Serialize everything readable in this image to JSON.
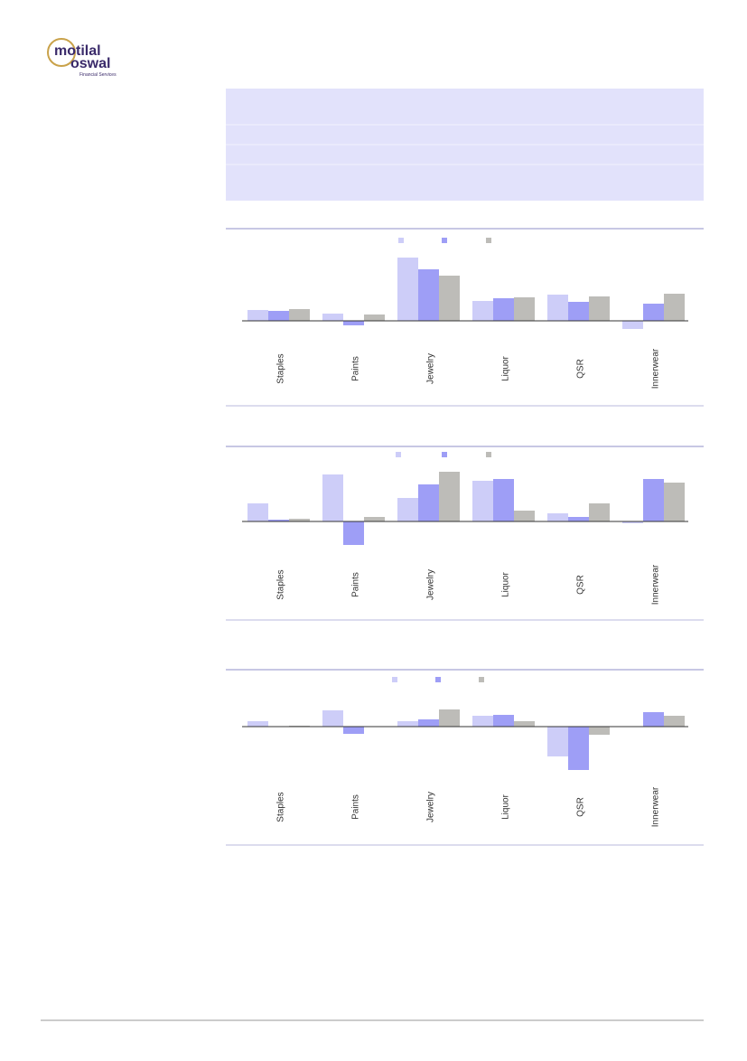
{
  "header": {
    "logo_line1": "motilal",
    "logo_line2": "oswal",
    "logo_sub": "Financial Services"
  },
  "chart_data": [
    {
      "type": "bar",
      "categories": [
        "Staples",
        "Paints",
        "Jewelry",
        "Liquor",
        "QSR",
        "Innerwear"
      ],
      "series": [
        {
          "color": "#cdcdf8",
          "values": [
            12,
            8,
            70,
            22,
            29,
            -9
          ]
        },
        {
          "color": "#9e9ef6",
          "values": [
            11,
            -5,
            57,
            25,
            21,
            19
          ]
        },
        {
          "color": "#bdbcb8",
          "values": [
            13,
            7,
            50,
            26,
            27,
            30
          ]
        }
      ]
    },
    {
      "type": "bar",
      "categories": [
        "Staples",
        "Paints",
        "Jewelry",
        "Liquor",
        "QSR",
        "Innerwear"
      ],
      "series": [
        {
          "color": "#cdcdf8",
          "values": [
            20,
            52,
            26,
            45,
            9,
            -2
          ]
        },
        {
          "color": "#9e9ef6",
          "values": [
            2,
            -26,
            41,
            47,
            5,
            47
          ]
        },
        {
          "color": "#bdbcb8",
          "values": [
            3,
            5,
            55,
            12,
            20,
            43
          ]
        }
      ]
    },
    {
      "type": "bar",
      "categories": [
        "Staples",
        "Paints",
        "Jewelry",
        "Liquor",
        "QSR",
        "Innerwear"
      ],
      "series": [
        {
          "color": "#cdcdf8",
          "values": [
            6,
            18,
            6,
            12,
            -33,
            0
          ]
        },
        {
          "color": "#9e9ef6",
          "values": [
            0,
            -8,
            8,
            13,
            -48,
            16
          ]
        },
        {
          "color": "#bdbcb8",
          "values": [
            1,
            0,
            19,
            6,
            -9,
            12
          ]
        }
      ]
    }
  ]
}
